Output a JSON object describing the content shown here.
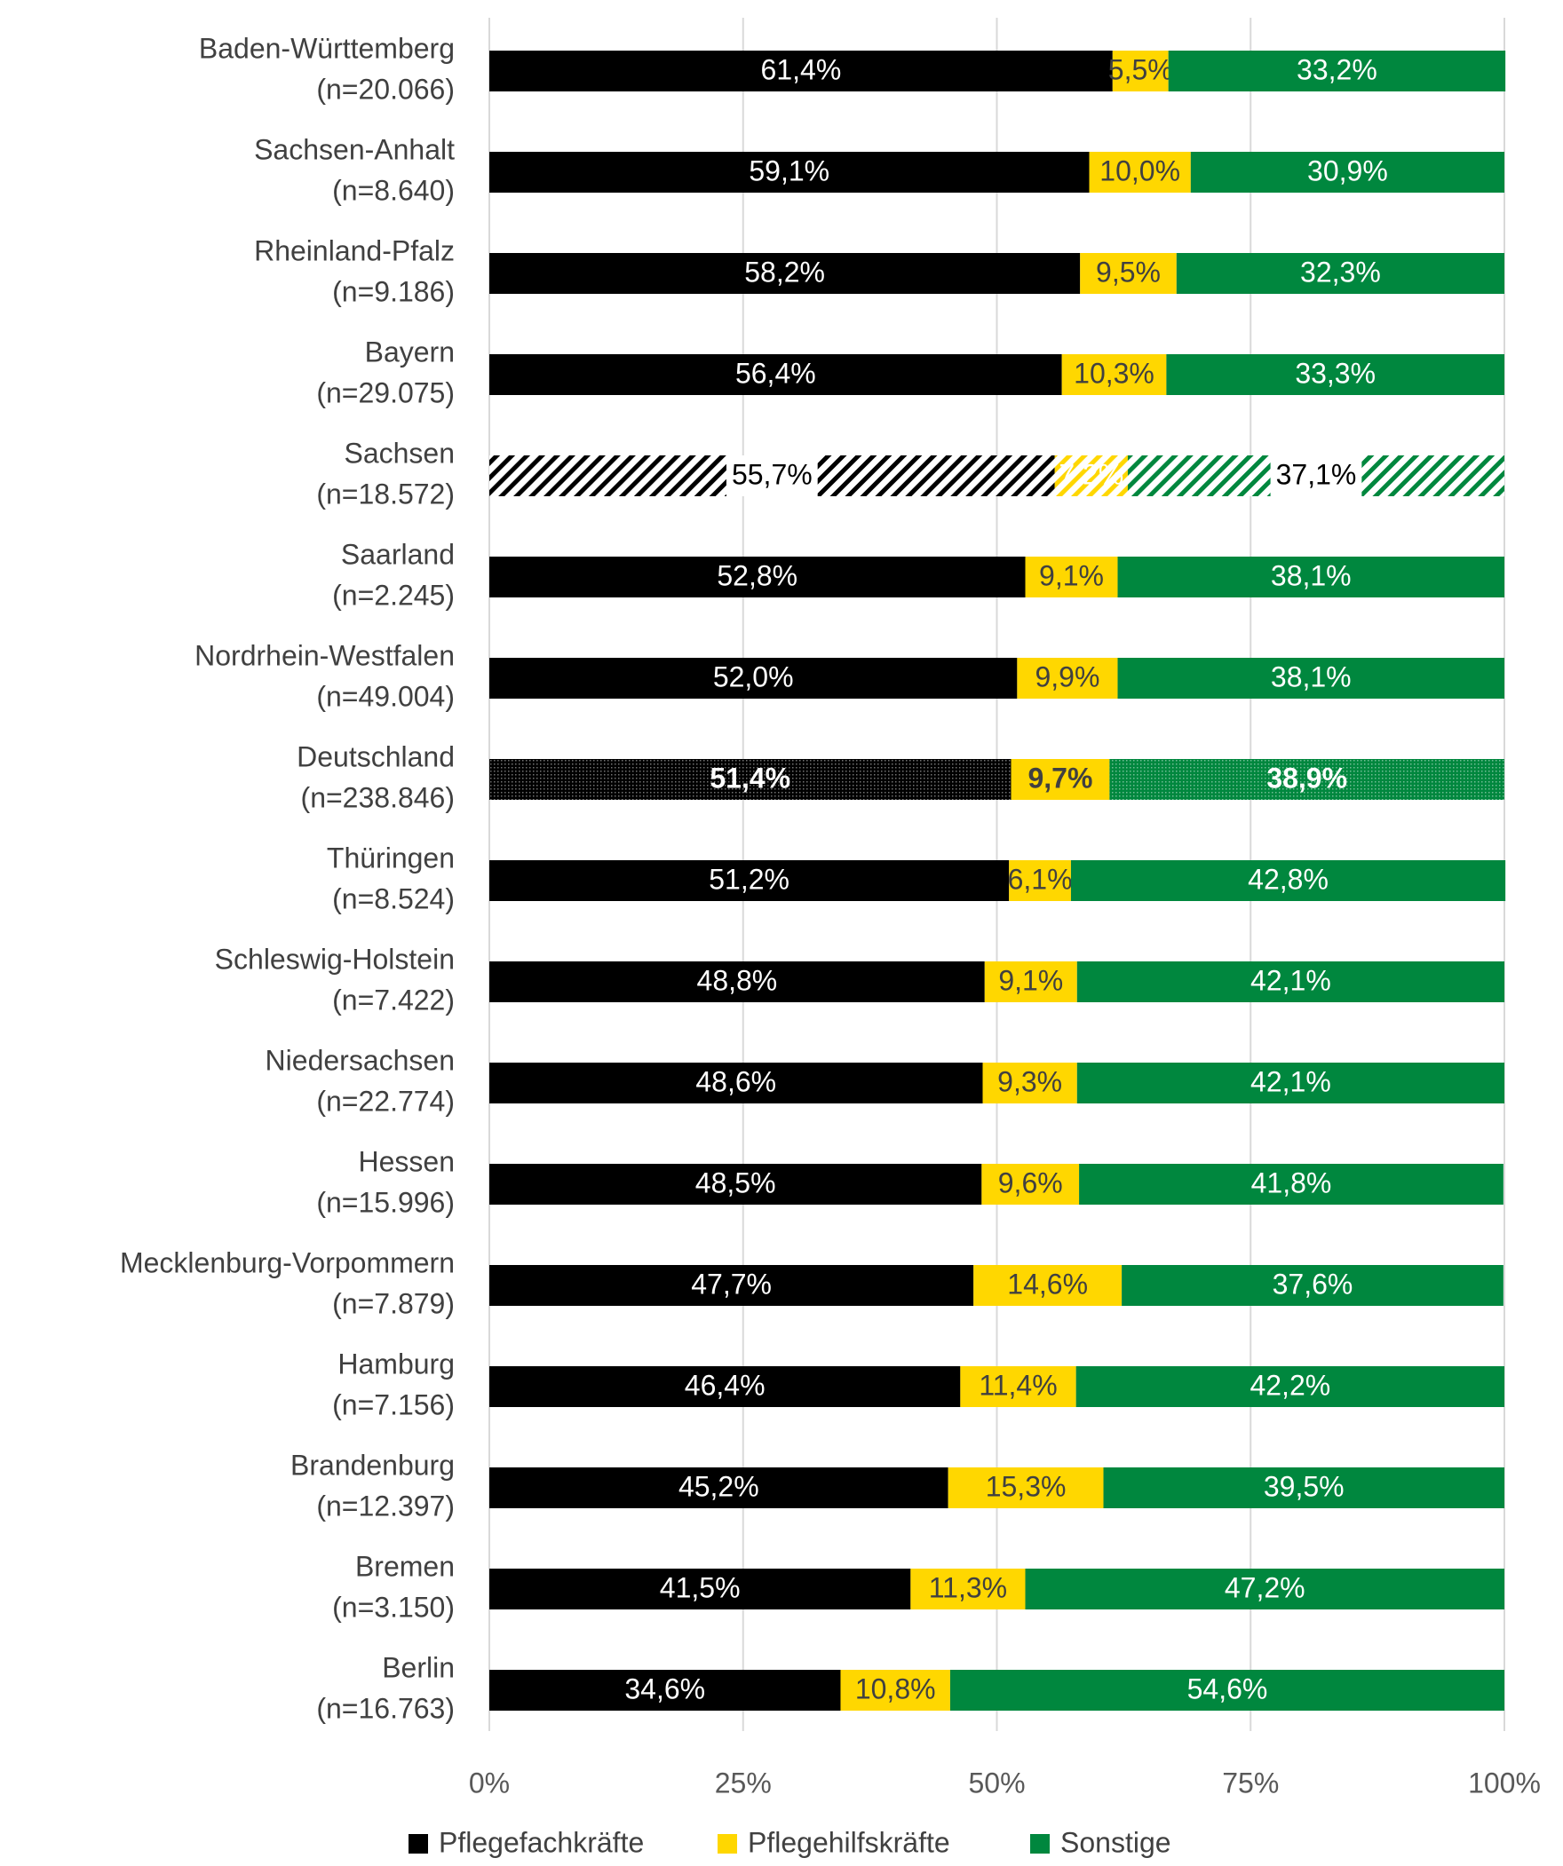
{
  "chart_data": {
    "type": "stacked_barh",
    "categories": [
      [
        "Baden-Württemberg",
        "(n=20.066)"
      ],
      [
        "Sachsen-Anhalt",
        "(n=8.640)"
      ],
      [
        "Rheinland-Pfalz",
        "(n=9.186)"
      ],
      [
        "Bayern",
        "(n=29.075)"
      ],
      [
        "Sachsen",
        "(n=18.572)"
      ],
      [
        "Saarland",
        "(n=2.245)"
      ],
      [
        "Nordrhein-Westfalen",
        "(n=49.004)"
      ],
      [
        "Deutschland",
        "(n=238.846)"
      ],
      [
        "Thüringen",
        "(n=8.524)"
      ],
      [
        "Schleswig-Holstein",
        "(n=7.422)"
      ],
      [
        "Niedersachsen",
        "(n=22.774)"
      ],
      [
        "Hessen",
        "(n=15.996)"
      ],
      [
        "Mecklenburg-Vorpommern",
        "(n=7.879)"
      ],
      [
        "Hamburg",
        "(n=7.156)"
      ],
      [
        "Brandenburg",
        "(n=12.397)"
      ],
      [
        "Bremen",
        "(n=3.150)"
      ],
      [
        "Berlin",
        "(n=16.763)"
      ]
    ],
    "pattern": [
      null,
      null,
      null,
      null,
      "hatch",
      null,
      null,
      "dots",
      null,
      null,
      null,
      null,
      null,
      null,
      null,
      null,
      null
    ],
    "series": [
      {
        "name": "Pflegefachkräfte",
        "color": "#000000",
        "label_color": "#ffffff",
        "values": [
          61.4,
          59.1,
          58.2,
          56.4,
          55.7,
          52.8,
          52.0,
          51.4,
          51.2,
          48.8,
          48.6,
          48.5,
          47.7,
          46.4,
          45.2,
          41.5,
          34.6
        ],
        "value_labels": [
          "61,4%",
          "59,1%",
          "58,2%",
          "56,4%",
          "55,7%",
          "52,8%",
          "52,0%",
          "51,4%",
          "51,2%",
          "48,8%",
          "48,6%",
          "48,5%",
          "47,7%",
          "46,4%",
          "45,2%",
          "41,5%",
          "34,6%"
        ]
      },
      {
        "name": "Pflegehilfskräfte",
        "color": "#FFD700",
        "label_color": "#404040",
        "values": [
          5.5,
          10.0,
          9.5,
          10.3,
          7.2,
          9.1,
          9.9,
          9.7,
          6.1,
          9.1,
          9.3,
          9.6,
          14.6,
          11.4,
          15.3,
          11.3,
          10.8
        ],
        "value_labels": [
          "5,5%",
          "10,0%",
          "9,5%",
          "10,3%",
          "7,2%",
          "9,1%",
          "9,9%",
          "9,7%",
          "6,1%",
          "9,1%",
          "9,3%",
          "9,6%",
          "14,6%",
          "11,4%",
          "15,3%",
          "11,3%",
          "10,8%"
        ]
      },
      {
        "name": "Sonstige",
        "color": "#00873E",
        "label_color": "#ffffff",
        "values": [
          33.2,
          30.9,
          32.3,
          33.3,
          37.1,
          38.1,
          38.1,
          38.9,
          42.8,
          42.1,
          42.1,
          41.8,
          37.6,
          42.2,
          39.5,
          47.2,
          54.6
        ],
        "value_labels": [
          "33,2%",
          "30,9%",
          "32,3%",
          "33,3%",
          "37,1%",
          "38,1%",
          "38,1%",
          "38,9%",
          "42,8%",
          "42,1%",
          "42,1%",
          "41,8%",
          "37,6%",
          "42,2%",
          "39,5%",
          "47,2%",
          "54,6%"
        ]
      }
    ],
    "xlim": [
      0,
      100
    ],
    "xticks": [
      {
        "value": 0,
        "label": "0%"
      },
      {
        "value": 25,
        "label": "25%"
      },
      {
        "value": 50,
        "label": "50%"
      },
      {
        "value": 75,
        "label": "75%"
      },
      {
        "value": 100,
        "label": "100%"
      }
    ],
    "grid": true
  }
}
